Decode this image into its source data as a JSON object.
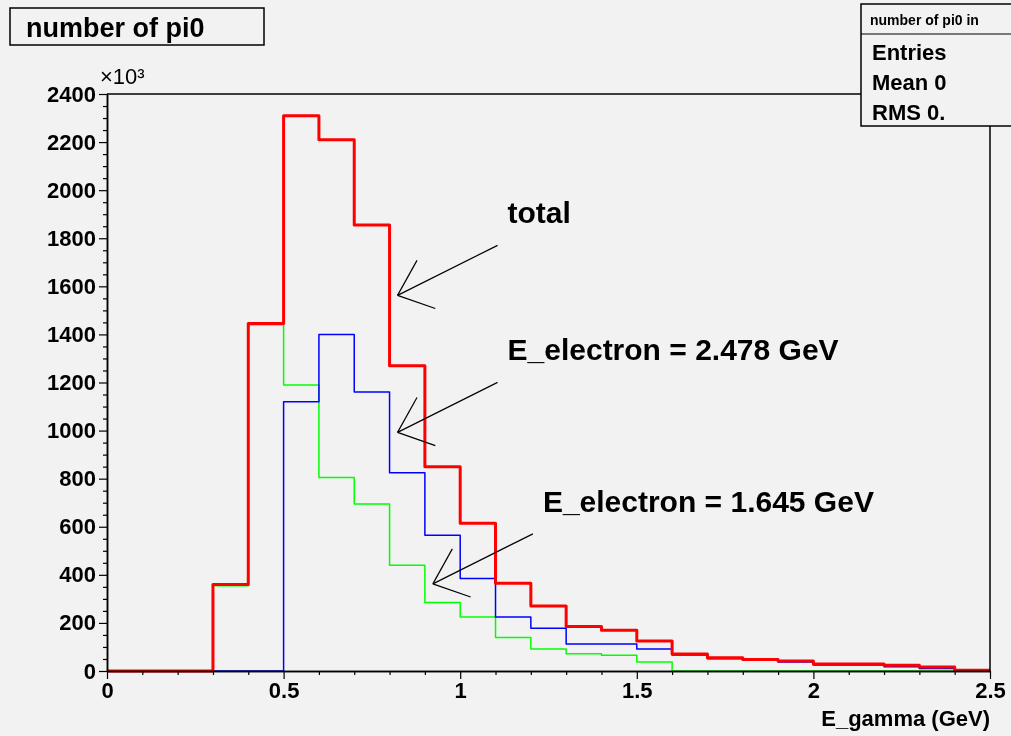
{
  "chart_data": {
    "type": "histogram",
    "title": "number of pi0",
    "xlabel": "E_gamma (GeV)",
    "bins": [
      0,
      0.1,
      0.2,
      0.3,
      0.4,
      0.5,
      0.6,
      0.7,
      0.8,
      0.9,
      1.0,
      1.1,
      1.2,
      1.3,
      1.4,
      1.5,
      1.6,
      1.7,
      1.8,
      1.9,
      2.0,
      2.1,
      2.2,
      2.3,
      2.4,
      2.5
    ],
    "series": [
      {
        "color": "#00ff00",
        "values": [
          0,
          0,
          0,
          355,
          1440,
          1190,
          805,
          695,
          440,
          285,
          225,
          139,
          91,
          72,
          65,
          37,
          0,
          0,
          0,
          0,
          0,
          0,
          0,
          0,
          0
        ]
      },
      {
        "color": "#0000ff",
        "values": [
          0,
          0,
          0,
          0,
          0,
          1120,
          1400,
          1160,
          825,
          565,
          385,
          225,
          178,
          112,
          112,
          92,
          67,
          51,
          45,
          37,
          25,
          25,
          18,
          10,
          3
        ]
      },
      {
        "color": "#ff0000",
        "values": [
          0,
          0,
          0,
          360,
          1445,
          2310,
          2210,
          1855,
          1270,
          850,
          615,
          365,
          270,
          185,
          170,
          125,
          71,
          55,
          48,
          42,
          29,
          29,
          24,
          17,
          3
        ]
      }
    ],
    "xlim": [
      0,
      2.5
    ],
    "ylim": [
      0,
      2400
    ],
    "xticks": [
      0,
      {
        "value": 0.1,
        "label": null
      },
      {
        "value": 0.2,
        "label": null
      },
      {
        "value": 0.3,
        "label": null
      },
      {
        "value": 0.4,
        "label": null
      },
      0.5,
      {
        "value": 0.6,
        "label": null
      },
      {
        "value": 0.7,
        "label": null
      },
      {
        "value": 0.8,
        "label": null
      },
      {
        "value": 0.9,
        "label": null
      },
      1,
      {
        "value": 1.1,
        "label": null
      },
      {
        "value": 1.2,
        "label": null
      },
      {
        "value": 1.3,
        "label": null
      },
      {
        "value": 1.4,
        "label": null
      },
      1.5,
      {
        "value": 1.6,
        "label": null
      },
      {
        "value": 1.7,
        "label": null
      },
      {
        "value": 1.8,
        "label": null
      },
      {
        "value": 1.9,
        "label": null
      },
      2,
      {
        "value": 2.1,
        "label": null
      },
      {
        "value": 2.2,
        "label": null
      },
      {
        "value": 2.3,
        "label": null
      },
      {
        "value": 2.4,
        "label": null
      },
      2.5
    ],
    "yticks": [
      0,
      {
        "value": 50,
        "label": null
      },
      {
        "value": 100,
        "label": null
      },
      {
        "value": 150,
        "label": null
      },
      200,
      {
        "value": 250,
        "label": null
      },
      {
        "value": 300,
        "label": null
      },
      {
        "value": 350,
        "label": null
      },
      400,
      {
        "value": 450,
        "label": null
      },
      {
        "value": 500,
        "label": null
      },
      {
        "value": 550,
        "label": null
      },
      600,
      {
        "value": 650,
        "label": null
      },
      {
        "value": 700,
        "label": null
      },
      {
        "value": 750,
        "label": null
      },
      800,
      {
        "value": 850,
        "label": null
      },
      {
        "value": 900,
        "label": null
      },
      {
        "value": 950,
        "label": null
      },
      1000,
      {
        "value": 1050,
        "label": null
      },
      {
        "value": 1100,
        "label": null
      },
      {
        "value": 1150,
        "label": null
      },
      1200,
      {
        "value": 1250,
        "label": null
      },
      {
        "value": 1300,
        "label": null
      },
      {
        "value": 1350,
        "label": null
      },
      1400,
      {
        "value": 1450,
        "label": null
      },
      {
        "value": 1500,
        "label": null
      },
      {
        "value": 1550,
        "label": null
      },
      1600,
      {
        "value": 1650,
        "label": null
      },
      {
        "value": 1700,
        "label": null
      },
      {
        "value": 1750,
        "label": null
      },
      1800,
      {
        "value": 1850,
        "label": null
      },
      {
        "value": 1900,
        "label": null
      },
      {
        "value": 1950,
        "label": null
      },
      2000,
      {
        "value": 2050,
        "label": null
      },
      {
        "value": 2100,
        "label": null
      },
      {
        "value": 2150,
        "label": null
      },
      2200,
      {
        "value": 2250,
        "label": null
      },
      {
        "value": 2300,
        "label": null
      },
      {
        "value": 2350,
        "label": null
      },
      2400
    ],
    "annotations": [
      "total",
      "E_electron = 2.478 GeV",
      "E_electron = 1.645 GeV",
      "×10³",
      "number of pi0 in",
      "Entries",
      "Mean 0",
      "RMS 0."
    ],
    "grid": false
  }
}
